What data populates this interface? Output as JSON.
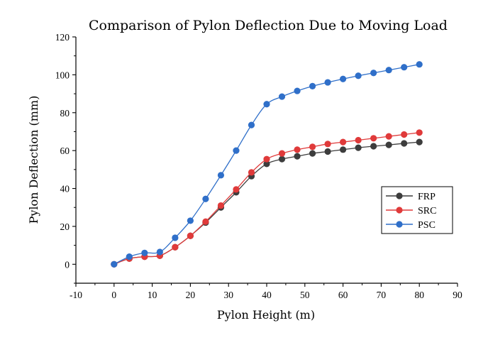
{
  "chart_data": {
    "type": "line",
    "title": "Comparison of Pylon Deflection Due to Moving Load",
    "xlabel": "Pylon Height (m)",
    "ylabel": "Pylon Deflection (mm)",
    "xlim": [
      -10,
      90
    ],
    "ylim": [
      -10,
      120
    ],
    "xticks": [
      -10,
      0,
      10,
      20,
      30,
      40,
      50,
      60,
      70,
      80,
      90
    ],
    "yticks": [
      0,
      20,
      40,
      60,
      80,
      100,
      120
    ],
    "x": [
      0,
      4,
      8,
      12,
      16,
      20,
      24,
      28,
      32,
      36,
      40,
      44,
      48,
      52,
      56,
      60,
      64,
      68,
      72,
      76,
      80
    ],
    "legend_position": "lower-right",
    "grid": false,
    "series": [
      {
        "name": "FRP",
        "color": "#3d3d3d",
        "values": [
          0,
          3,
          4,
          4.5,
          9,
          15,
          22,
          30,
          38,
          46.5,
          53,
          55.5,
          57,
          58.5,
          59.5,
          60.5,
          61.5,
          62.3,
          63,
          63.8,
          64.5
        ]
      },
      {
        "name": "SRC",
        "color": "#e03a3a",
        "values": [
          0,
          3,
          4,
          4.5,
          9,
          15,
          22.5,
          31,
          39.5,
          48.5,
          55.5,
          58.5,
          60.5,
          62,
          63.5,
          64.5,
          65.5,
          66.5,
          67.5,
          68.5,
          69.5
        ]
      },
      {
        "name": "PSC",
        "color": "#2f6fc9",
        "values": [
          0,
          4,
          6,
          6.5,
          14,
          23,
          34.5,
          47,
          60,
          73.5,
          84.5,
          88.5,
          91.5,
          94,
          96,
          97.8,
          99.5,
          101,
          102.5,
          104,
          105.5
        ]
      }
    ]
  }
}
